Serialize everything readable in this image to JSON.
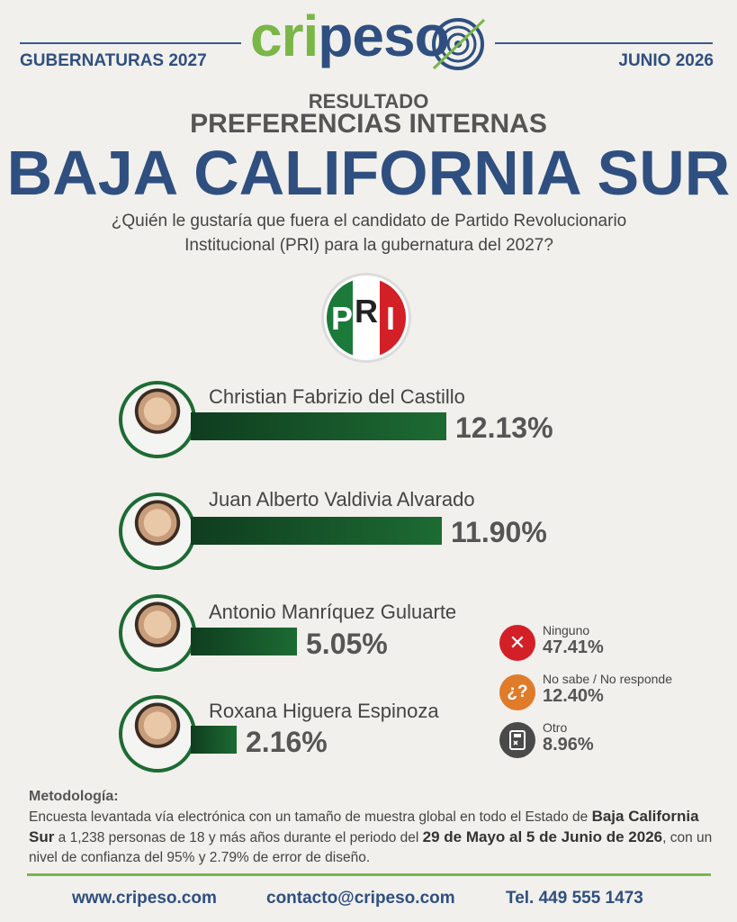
{
  "header": {
    "left_label": "GUBERNATURAS 2027",
    "right_label": "JUNIO 2026",
    "logo_text_green": "cri",
    "logo_text_blue": "peso"
  },
  "kicker": "RESULTADO",
  "subtitle": "PREFERENCIAS INTERNAS",
  "title": "BAJA CALIFORNIA SUR",
  "question_line1": "¿Quién le gustaría que fuera el candidato de Partido Revolucionario",
  "question_line2": "Institucional (PRI) para la gubernatura del 2027?",
  "party_logo": {
    "letters": [
      "P",
      "R",
      "I"
    ],
    "colors": [
      "#1b7a3a",
      "#ffffff",
      "#d32027"
    ]
  },
  "chart_data": {
    "type": "bar",
    "orientation": "horizontal",
    "title": "BAJA CALIFORNIA SUR",
    "categories": [
      "Christian Fabrizio del Castillo",
      "Juan Alberto Valdivia Alvarado",
      "Antonio Manríquez Guluarte",
      "Roxana Higuera Espinoza"
    ],
    "values": [
      12.13,
      11.9,
      5.05,
      2.16
    ],
    "value_labels": [
      "12.13%",
      "11.90%",
      "5.05%",
      "2.16%"
    ],
    "bar_color": "#1d6b33",
    "other_responses": [
      {
        "label": "Ninguno",
        "value": 47.41,
        "value_label": "47.41%",
        "icon": "x-icon",
        "color": "#d32027"
      },
      {
        "label": "No sabe / No responde",
        "value": 12.4,
        "value_label": "12.40%",
        "icon": "question-icon",
        "color": "#e07b2a"
      },
      {
        "label": "Otro",
        "value": 8.96,
        "value_label": "8.96%",
        "icon": "ballot-icon",
        "color": "#4a4a4a"
      }
    ]
  },
  "methodology": {
    "heading": "Metodología:",
    "p1": "Encuesta levantada vía electrónica con un tamaño de muestra global en todo el Estado de ",
    "b1": "Baja California Sur",
    "p2": " a 1,238 personas de 18 y más años durante el periodo del ",
    "b2": "29 de Mayo al 5 de Junio de 2026",
    "p3": ", con un nivel de confianza del 95% y 2.79% de error de diseño."
  },
  "footer": {
    "website": "www.cripeso.com",
    "email": "contacto@cripeso.com",
    "phone": "Tel. 449 555 1473"
  },
  "colors": {
    "brand_blue": "#2f4f80",
    "brand_green": "#7ab648",
    "bar_green": "#1d6b33"
  }
}
